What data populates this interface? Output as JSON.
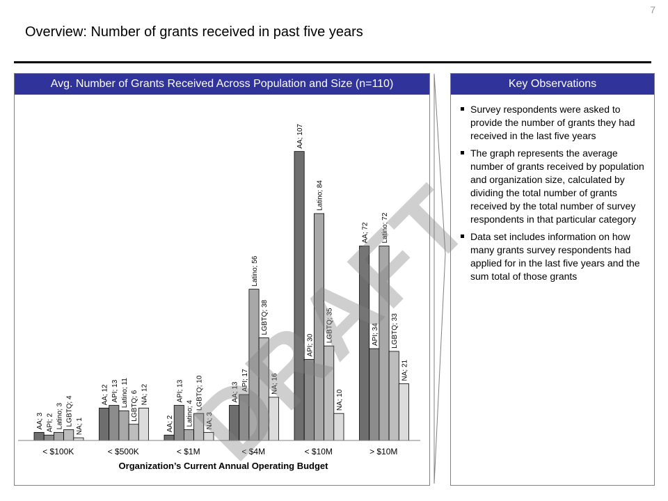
{
  "page": {
    "number": "7",
    "title": "Overview: Number of grants received in past five years",
    "watermark": "DRAFT"
  },
  "chart_panel": {
    "header": "Avg. Number of Grants Received Across Population and Size (n=110)"
  },
  "observations": {
    "header": "Key Observations",
    "items": [
      "Survey respondents were asked to provide the number of grants they had received in the last five years",
      "The graph represents the average number of grants received by population and organization size, calculated by dividing the total number of grants received by the total number of survey respondents in that particular category",
      "Data set includes information on how many grants survey respondents had applied for in the last five years and the sum total of those grants"
    ]
  },
  "chart_data": {
    "type": "bar",
    "title": "Avg. Number of Grants Received Across Population and Size (n=110)",
    "xlabel": "Organization’s Current Annual Operating Budget",
    "ylabel": "",
    "ylim": [
      0,
      110
    ],
    "categories": [
      "< $100K",
      "< $500K",
      "< $1M",
      "< $4M",
      "< $10M",
      "> $10M"
    ],
    "series": [
      {
        "name": "AA",
        "color": "#6e6e6e",
        "values": [
          3,
          12,
          2,
          13,
          107,
          72
        ]
      },
      {
        "name": "API",
        "color": "#8c8c8c",
        "values": [
          2,
          13,
          13,
          17,
          30,
          34
        ]
      },
      {
        "name": "Latino",
        "color": "#a8a8a8",
        "values": [
          3,
          11,
          4,
          56,
          84,
          72
        ]
      },
      {
        "name": "LGBTQ",
        "color": "#bdbdbd",
        "values": [
          4,
          6,
          10,
          38,
          35,
          33
        ]
      },
      {
        "name": "NA",
        "color": "#dcdcdc",
        "values": [
          1,
          12,
          3,
          16,
          10,
          21
        ]
      }
    ],
    "data_labels": [
      [
        "AA; 3",
        "AA; 12",
        "AA; 2",
        "AA; 13",
        "AA; 107",
        "AA; 72"
      ],
      [
        "API; 2",
        "API; 13",
        "API; 13",
        "API; 17",
        "API; 30",
        "API; 34"
      ],
      [
        "Latino; 3",
        "Latino; 11",
        "Latino; 4",
        "Latino; 56",
        "Latino; 84",
        "Latino; 72"
      ],
      [
        "LGBTQ; 4",
        "LGBTQ; 6",
        "LGBTQ; 10",
        "LGBTQ; 38",
        "LGBTQ; 35",
        "LGBTQ; 33"
      ],
      [
        "NA; 1",
        "NA; 12",
        "NA; 3",
        "NA; 16",
        "NA; 10",
        "NA; 21"
      ]
    ],
    "grid": false,
    "legend": "none"
  }
}
